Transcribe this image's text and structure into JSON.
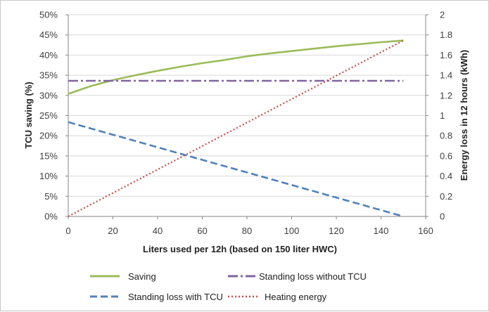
{
  "chart_data": {
    "type": "line",
    "title": "",
    "xlabel": "Liters used per 12h (based on 150 liter HWC)",
    "ylabel_left": "TCU saving (%)",
    "ylabel_right": "Energy loss in 12 hours (kWh)",
    "xlim": [
      0,
      160
    ],
    "x_ticks": [
      "0",
      "20",
      "40",
      "60",
      "80",
      "100",
      "120",
      "140",
      "160"
    ],
    "ylim_left": [
      0,
      50
    ],
    "y_ticks_left": [
      "0%",
      "5%",
      "10%",
      "15%",
      "20%",
      "25%",
      "30%",
      "35%",
      "40%",
      "45%",
      "50%"
    ],
    "ylim_right": [
      0,
      2
    ],
    "y_ticks_right": [
      "0",
      "0.2",
      "0.4",
      "0.6",
      "0.8",
      "1",
      "1.2",
      "1.4",
      "1.6",
      "1.8",
      "2"
    ],
    "grid": "horizontal",
    "legend_position": "bottom",
    "series": [
      {
        "name": "Saving",
        "axis": "left",
        "color": "#9bbb59",
        "style": "solid",
        "points": [
          [
            0,
            30.4
          ],
          [
            10,
            32.3
          ],
          [
            20,
            33.8
          ],
          [
            30,
            35.0
          ],
          [
            40,
            36.1
          ],
          [
            50,
            37.1
          ],
          [
            60,
            38.0
          ],
          [
            70,
            38.8
          ],
          [
            80,
            39.7
          ],
          [
            90,
            40.4
          ],
          [
            100,
            41.0
          ],
          [
            110,
            41.6
          ],
          [
            120,
            42.2
          ],
          [
            130,
            42.7
          ],
          [
            140,
            43.2
          ],
          [
            150,
            43.6
          ]
        ]
      },
      {
        "name": "Standing loss without TCU",
        "axis": "right",
        "color": "#8064a2",
        "style": "dash-dot",
        "points": [
          [
            0,
            1.345
          ],
          [
            150,
            1.345
          ]
        ]
      },
      {
        "name": "Standing loss with TCU",
        "axis": "right",
        "color": "#4f81bd",
        "style": "dashed",
        "points": [
          [
            0,
            0.935
          ],
          [
            150,
            0.0
          ]
        ]
      },
      {
        "name": "Heating energy",
        "axis": "right",
        "color": "#c0504d",
        "style": "dotted",
        "points": [
          [
            0,
            0.0
          ],
          [
            150,
            1.745
          ]
        ]
      }
    ]
  }
}
